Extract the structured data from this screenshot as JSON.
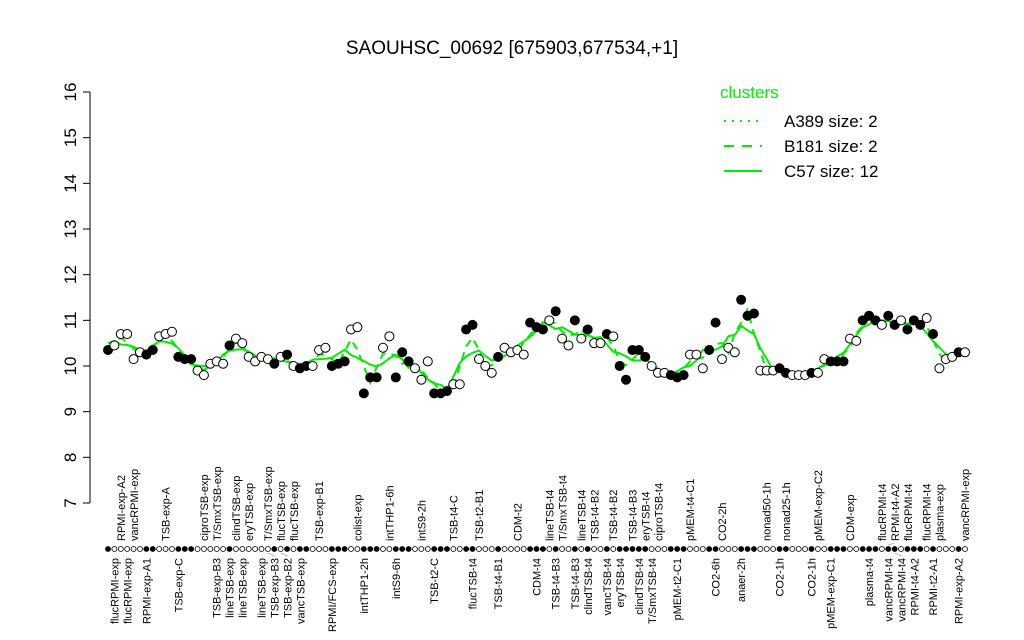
{
  "chart_data": {
    "type": "scatter",
    "title": "SAOUHSC_00692 [675903,677534,+1]",
    "ylim": [
      7,
      16
    ],
    "yticks": [
      7,
      8,
      9,
      10,
      11,
      12,
      13,
      14,
      15,
      16
    ],
    "grid": false,
    "legend": {
      "title": "clusters",
      "placement": "top-right",
      "entries": [
        {
          "label": "A389 size: 2",
          "style": "dotted"
        },
        {
          "label": "B181 size: 2",
          "style": "dashed"
        },
        {
          "label": "C57 size: 12",
          "style": "solid"
        }
      ]
    },
    "colors": {
      "cluster": "#00ee00",
      "points": "#000000"
    },
    "points": [
      [
        10.35,
        1
      ],
      [
        10.45,
        0
      ],
      [
        10.7,
        0
      ],
      [
        10.7,
        0
      ],
      [
        10.15,
        0
      ],
      [
        10.3,
        0
      ],
      [
        10.25,
        1
      ],
      [
        10.35,
        1
      ],
      [
        10.65,
        0
      ],
      [
        10.7,
        0
      ],
      [
        10.75,
        0
      ],
      [
        10.2,
        1
      ],
      [
        10.15,
        1
      ],
      [
        10.15,
        1
      ],
      [
        9.9,
        0
      ],
      [
        9.8,
        0
      ],
      [
        10.05,
        0
      ],
      [
        10.1,
        0
      ],
      [
        10.05,
        0
      ],
      [
        10.45,
        1
      ],
      [
        10.6,
        0
      ],
      [
        10.5,
        0
      ],
      [
        10.2,
        0
      ],
      [
        10.1,
        0
      ],
      [
        10.2,
        0
      ],
      [
        10.15,
        0
      ],
      [
        10.05,
        1
      ],
      [
        10.2,
        0
      ],
      [
        10.25,
        1
      ],
      [
        10.0,
        0
      ],
      [
        9.95,
        1
      ],
      [
        10.0,
        1
      ],
      [
        10.0,
        0
      ],
      [
        10.35,
        0
      ],
      [
        10.4,
        0
      ],
      [
        10.0,
        1
      ],
      [
        10.05,
        1
      ],
      [
        10.1,
        1
      ],
      [
        10.8,
        0
      ],
      [
        10.85,
        0
      ],
      [
        9.4,
        1
      ],
      [
        9.75,
        1
      ],
      [
        9.75,
        1
      ],
      [
        10.4,
        0
      ],
      [
        10.65,
        0
      ],
      [
        9.75,
        1
      ],
      [
        10.3,
        1
      ],
      [
        10.1,
        1
      ],
      [
        9.95,
        0
      ],
      [
        9.7,
        0
      ],
      [
        10.1,
        0
      ],
      [
        9.4,
        1
      ],
      [
        9.4,
        1
      ],
      [
        9.45,
        1
      ],
      [
        9.6,
        0
      ],
      [
        9.6,
        0
      ],
      [
        10.8,
        1
      ],
      [
        10.9,
        1
      ],
      [
        10.15,
        0
      ],
      [
        10.0,
        0
      ],
      [
        9.85,
        0
      ],
      [
        10.2,
        1
      ],
      [
        10.4,
        0
      ],
      [
        10.3,
        0
      ],
      [
        10.35,
        0
      ],
      [
        10.25,
        0
      ],
      [
        10.95,
        1
      ],
      [
        10.85,
        1
      ],
      [
        10.8,
        1
      ],
      [
        11.0,
        0
      ],
      [
        11.2,
        1
      ],
      [
        10.6,
        0
      ],
      [
        10.45,
        0
      ],
      [
        11.0,
        1
      ],
      [
        10.6,
        0
      ],
      [
        10.8,
        1
      ],
      [
        10.5,
        0
      ],
      [
        10.5,
        0
      ],
      [
        10.7,
        1
      ],
      [
        10.65,
        0
      ],
      [
        10.0,
        1
      ],
      [
        9.7,
        1
      ],
      [
        10.35,
        1
      ],
      [
        10.35,
        1
      ],
      [
        10.2,
        1
      ],
      [
        10.0,
        0
      ],
      [
        9.85,
        0
      ],
      [
        9.85,
        0
      ],
      [
        9.8,
        1
      ],
      [
        9.75,
        1
      ],
      [
        9.8,
        1
      ],
      [
        10.25,
        0
      ],
      [
        10.25,
        0
      ],
      [
        9.95,
        0
      ],
      [
        10.35,
        1
      ],
      [
        10.95,
        1
      ],
      [
        10.15,
        0
      ],
      [
        10.4,
        0
      ],
      [
        10.3,
        0
      ],
      [
        11.45,
        1
      ],
      [
        11.1,
        1
      ],
      [
        11.15,
        1
      ],
      [
        9.9,
        0
      ],
      [
        9.9,
        0
      ],
      [
        9.9,
        0
      ],
      [
        9.95,
        1
      ],
      [
        9.85,
        1
      ],
      [
        9.8,
        0
      ],
      [
        9.8,
        0
      ],
      [
        9.8,
        0
      ],
      [
        9.85,
        1
      ],
      [
        9.85,
        0
      ],
      [
        10.15,
        0
      ],
      [
        10.1,
        1
      ],
      [
        10.1,
        1
      ],
      [
        10.1,
        1
      ],
      [
        10.6,
        0
      ],
      [
        10.55,
        0
      ],
      [
        11.0,
        1
      ],
      [
        11.1,
        1
      ],
      [
        11.0,
        1
      ],
      [
        10.9,
        0
      ],
      [
        11.1,
        1
      ],
      [
        10.9,
        1
      ],
      [
        11.0,
        0
      ],
      [
        10.8,
        1
      ],
      [
        11.0,
        1
      ],
      [
        10.9,
        1
      ],
      [
        11.05,
        0
      ],
      [
        10.7,
        1
      ],
      [
        9.95,
        0
      ],
      [
        10.15,
        0
      ],
      [
        10.2,
        0
      ],
      [
        10.3,
        1
      ],
      [
        10.3,
        0
      ]
    ],
    "top_labels": [
      [
        "RPMI-exp-A2",
        2
      ],
      [
        "vancRPMI-exp",
        4
      ],
      [
        "TSB-exp-A",
        9
      ],
      [
        "ciproTSB-exp",
        15
      ],
      [
        "T/SmxTSB-exp",
        17
      ],
      [
        "clindTSB-exp",
        20
      ],
      [
        "eryTSB-exp",
        22
      ],
      [
        "T/SmxTSB-exp",
        25
      ],
      [
        "flucTSB-exp",
        27
      ],
      [
        "flucTSB-exp",
        29
      ],
      [
        "TSB-exp-B1",
        33
      ],
      [
        "colist-exp",
        39
      ],
      [
        "intTHP1-6h",
        44
      ],
      [
        "intS9-2h",
        49
      ],
      [
        "TSB-t4-C",
        54
      ],
      [
        "TSB-t2-B1",
        58
      ],
      [
        "CDM-t2",
        64
      ],
      [
        "lineTSB-t4",
        69
      ],
      [
        "T/SmxTSB-t4",
        71
      ],
      [
        "lineTSB-t4",
        74
      ],
      [
        "TSB-t4-B2",
        76
      ],
      [
        "TSB-t4-B2",
        79
      ],
      [
        "TSB-t4-B3",
        82
      ],
      [
        "eryTSB-t4",
        84
      ],
      [
        "ciproTSB-t4",
        86
      ],
      [
        "pMEM-t4-C1",
        91
      ],
      [
        "CO2-2h",
        96
      ],
      [
        "nonad50-1h",
        103
      ],
      [
        "nonad25-1h",
        106
      ],
      [
        "pMEM-exp-C2",
        111
      ],
      [
        "CDM-exp",
        116
      ],
      [
        "flucRPMI-t4",
        121
      ],
      [
        "RPMI-t4-A2",
        122
      ],
      [
        "flucRPMI-t4",
        125
      ],
      [
        "flucRPMI-t4",
        128
      ],
      [
        "plasma-exp",
        130
      ],
      [
        "vancRPMI-exp",
        134
      ]
    ],
    "bottom_labels": [
      [
        "flucRPMI-exp",
        1
      ],
      [
        "flucRPMI-exp",
        3
      ],
      [
        "RPMI-exp-A1",
        6
      ],
      [
        "TSB-exp-C",
        11
      ],
      [
        "TSB-exp-B3",
        17
      ],
      [
        "lineTSB-exp",
        19
      ],
      [
        "lineTSB-exp",
        21
      ],
      [
        "lineTSB-exp",
        24
      ],
      [
        "TSB-exp-B3",
        25
      ],
      [
        "TSB-exp-B2",
        27
      ],
      [
        "vancTSB-exp",
        30
      ],
      [
        "RPMI/FCS-exp",
        35
      ],
      [
        "intTHP1-2h",
        40
      ],
      [
        "intS9-6h",
        45
      ],
      [
        "TSB-t2-C",
        51
      ],
      [
        "flucTSB-t4",
        57
      ],
      [
        "TSB-t4-B1",
        61
      ],
      [
        "CDM-t4",
        67
      ],
      [
        "TSB-t4-B3",
        70
      ],
      [
        "TSB-t4-B3",
        73
      ],
      [
        "clindTSB-t4",
        75
      ],
      [
        "vancTSB-t4",
        78
      ],
      [
        "eryTSB-t4",
        80
      ],
      [
        "clindTSB-t4",
        83
      ],
      [
        "T/SmxTSB-t4",
        85
      ],
      [
        "pMEM-t2-C1",
        89
      ],
      [
        "CO2-6h",
        95
      ],
      [
        "anaer-2h",
        99
      ],
      [
        "CO2-1h",
        105
      ],
      [
        "CO2-1h",
        110
      ],
      [
        "pMEM-exp-C1",
        113
      ],
      [
        "plasma-t4",
        119
      ],
      [
        "vancRPMI-t4",
        122
      ],
      [
        "vancRPMI-t4",
        123
      ],
      [
        "RPMI-t4-A2",
        126
      ],
      [
        "RPMI-t2-A1",
        129
      ],
      [
        "RPMI-exp-A2",
        133
      ]
    ]
  }
}
